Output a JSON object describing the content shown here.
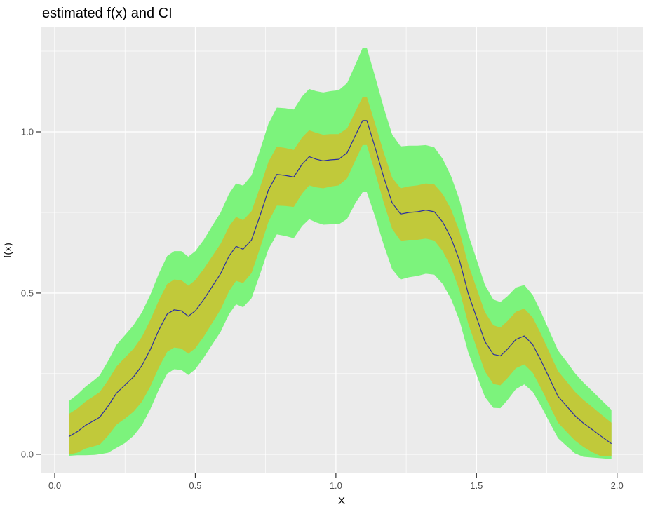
{
  "chart_data": {
    "type": "line",
    "title": "estimated f(x) and CI",
    "xlabel": "X",
    "ylabel": "f(x)",
    "xlim": [
      -0.05,
      2.093
    ],
    "ylim": [
      -0.059,
      1.324
    ],
    "grid": true,
    "legend": "none",
    "x_ticks": {
      "values": [
        0.0,
        0.5,
        1.0,
        1.5,
        2.0
      ],
      "labels": [
        "0.0",
        "0.5",
        "1.0",
        "1.5",
        "2.0"
      ]
    },
    "y_ticks": {
      "values": [
        0.0,
        0.5,
        1.0
      ],
      "labels": [
        "0.0",
        "0.5",
        "1.0"
      ]
    },
    "x_minor": [
      0.25,
      0.75,
      1.25,
      1.75
    ],
    "y_minor": [
      0.25,
      0.75,
      1.25
    ],
    "colors": {
      "panel": "#EBEBEB",
      "grid": "#FFFFFF",
      "tick": "#333333",
      "tick_label": "#4D4D4D",
      "title": "#000000"
    },
    "x": [
      0.05,
      0.08,
      0.11,
      0.14,
      0.16,
      0.19,
      0.22,
      0.25,
      0.28,
      0.31,
      0.34,
      0.37,
      0.4,
      0.425,
      0.45,
      0.475,
      0.5,
      0.53,
      0.56,
      0.59,
      0.62,
      0.645,
      0.67,
      0.7,
      0.73,
      0.76,
      0.79,
      0.82,
      0.85,
      0.88,
      0.905,
      0.93,
      0.955,
      0.98,
      1.01,
      1.04,
      1.07,
      1.095,
      1.11,
      1.14,
      1.17,
      1.2,
      1.23,
      1.26,
      1.29,
      1.32,
      1.35,
      1.38,
      1.41,
      1.44,
      1.47,
      1.5,
      1.53,
      1.56,
      1.585,
      1.61,
      1.64,
      1.67,
      1.7,
      1.73,
      1.76,
      1.79,
      1.82,
      1.85,
      1.88,
      1.91,
      1.94,
      1.98
    ],
    "series": [
      {
        "id": "ci-outer-band",
        "name": "outer confidence band",
        "type": "ribbon",
        "color": "#7CF37C",
        "high": [
          0.165,
          0.185,
          0.21,
          0.23,
          0.245,
          0.29,
          0.34,
          0.37,
          0.4,
          0.44,
          0.495,
          0.56,
          0.615,
          0.63,
          0.63,
          0.613,
          0.63,
          0.665,
          0.708,
          0.75,
          0.808,
          0.84,
          0.833,
          0.865,
          0.943,
          1.025,
          1.075,
          1.073,
          1.069,
          1.11,
          1.133,
          1.126,
          1.122,
          1.126,
          1.129,
          1.151,
          1.21,
          1.26,
          1.26,
          1.17,
          1.075,
          0.992,
          0.955,
          0.957,
          0.957,
          0.959,
          0.952,
          0.916,
          0.862,
          0.788,
          0.684,
          0.605,
          0.525,
          0.48,
          0.472,
          0.49,
          0.517,
          0.525,
          0.494,
          0.44,
          0.381,
          0.322,
          0.288,
          0.252,
          0.223,
          0.198,
          0.172,
          0.138
        ],
        "low": [
          -0.005,
          -0.003,
          -0.003,
          -0.002,
          0.0,
          0.005,
          0.02,
          0.035,
          0.057,
          0.09,
          0.14,
          0.2,
          0.25,
          0.264,
          0.262,
          0.246,
          0.264,
          0.3,
          0.34,
          0.38,
          0.435,
          0.465,
          0.456,
          0.484,
          0.558,
          0.636,
          0.682,
          0.677,
          0.67,
          0.708,
          0.729,
          0.719,
          0.712,
          0.713,
          0.713,
          0.73,
          0.78,
          0.813,
          0.813,
          0.735,
          0.65,
          0.574,
          0.542,
          0.549,
          0.553,
          0.56,
          0.557,
          0.528,
          0.481,
          0.414,
          0.318,
          0.247,
          0.178,
          0.144,
          0.143,
          0.168,
          0.202,
          0.217,
          0.194,
          0.149,
          0.099,
          0.05,
          0.026,
          0.003,
          -0.008,
          -0.01,
          -0.012,
          -0.015
        ]
      },
      {
        "id": "ci-inner-band",
        "name": "inner confidence band",
        "type": "ribbon",
        "color": "#C1C93A",
        "high": [
          0.125,
          0.142,
          0.164,
          0.181,
          0.193,
          0.23,
          0.273,
          0.3,
          0.327,
          0.364,
          0.416,
          0.477,
          0.528,
          0.542,
          0.54,
          0.523,
          0.54,
          0.575,
          0.614,
          0.653,
          0.707,
          0.736,
          0.726,
          0.754,
          0.828,
          0.907,
          0.954,
          0.95,
          0.944,
          0.983,
          1.005,
          0.997,
          0.991,
          0.993,
          0.993,
          1.011,
          1.064,
          1.108,
          1.108,
          1.024,
          0.936,
          0.858,
          0.825,
          0.831,
          0.834,
          0.84,
          0.837,
          0.807,
          0.759,
          0.69,
          0.591,
          0.516,
          0.441,
          0.4,
          0.393,
          0.413,
          0.442,
          0.452,
          0.424,
          0.372,
          0.315,
          0.258,
          0.226,
          0.194,
          0.169,
          0.148,
          0.126,
          0.098
        ],
        "low": [
          -0.001,
          0.005,
          0.018,
          0.025,
          0.03,
          0.058,
          0.092,
          0.111,
          0.132,
          0.163,
          0.21,
          0.269,
          0.318,
          0.331,
          0.328,
          0.312,
          0.329,
          0.365,
          0.407,
          0.449,
          0.506,
          0.538,
          0.531,
          0.562,
          0.639,
          0.721,
          0.771,
          0.77,
          0.767,
          0.809,
          0.834,
          0.828,
          0.825,
          0.83,
          0.834,
          0.856,
          0.913,
          0.959,
          0.959,
          0.873,
          0.781,
          0.699,
          0.662,
          0.665,
          0.665,
          0.669,
          0.663,
          0.63,
          0.579,
          0.508,
          0.407,
          0.332,
          0.257,
          0.218,
          0.214,
          0.236,
          0.267,
          0.279,
          0.253,
          0.204,
          0.151,
          0.098,
          0.07,
          0.043,
          0.023,
          0.007,
          -0.005,
          -0.005
        ]
      },
      {
        "id": "estimate-line",
        "name": "estimated f(x)",
        "type": "line",
        "color": "#2A2EA2",
        "y": [
          0.055,
          0.07,
          0.09,
          0.105,
          0.115,
          0.15,
          0.19,
          0.215,
          0.24,
          0.275,
          0.325,
          0.385,
          0.435,
          0.448,
          0.445,
          0.428,
          0.445,
          0.48,
          0.52,
          0.56,
          0.615,
          0.645,
          0.636,
          0.665,
          0.74,
          0.82,
          0.868,
          0.865,
          0.86,
          0.9,
          0.923,
          0.915,
          0.91,
          0.913,
          0.915,
          0.935,
          0.99,
          1.035,
          1.035,
          0.95,
          0.86,
          0.78,
          0.745,
          0.75,
          0.752,
          0.757,
          0.752,
          0.72,
          0.67,
          0.6,
          0.5,
          0.425,
          0.35,
          0.31,
          0.305,
          0.326,
          0.356,
          0.367,
          0.34,
          0.29,
          0.235,
          0.18,
          0.15,
          0.12,
          0.097,
          0.078,
          0.058,
          0.033
        ]
      }
    ]
  }
}
